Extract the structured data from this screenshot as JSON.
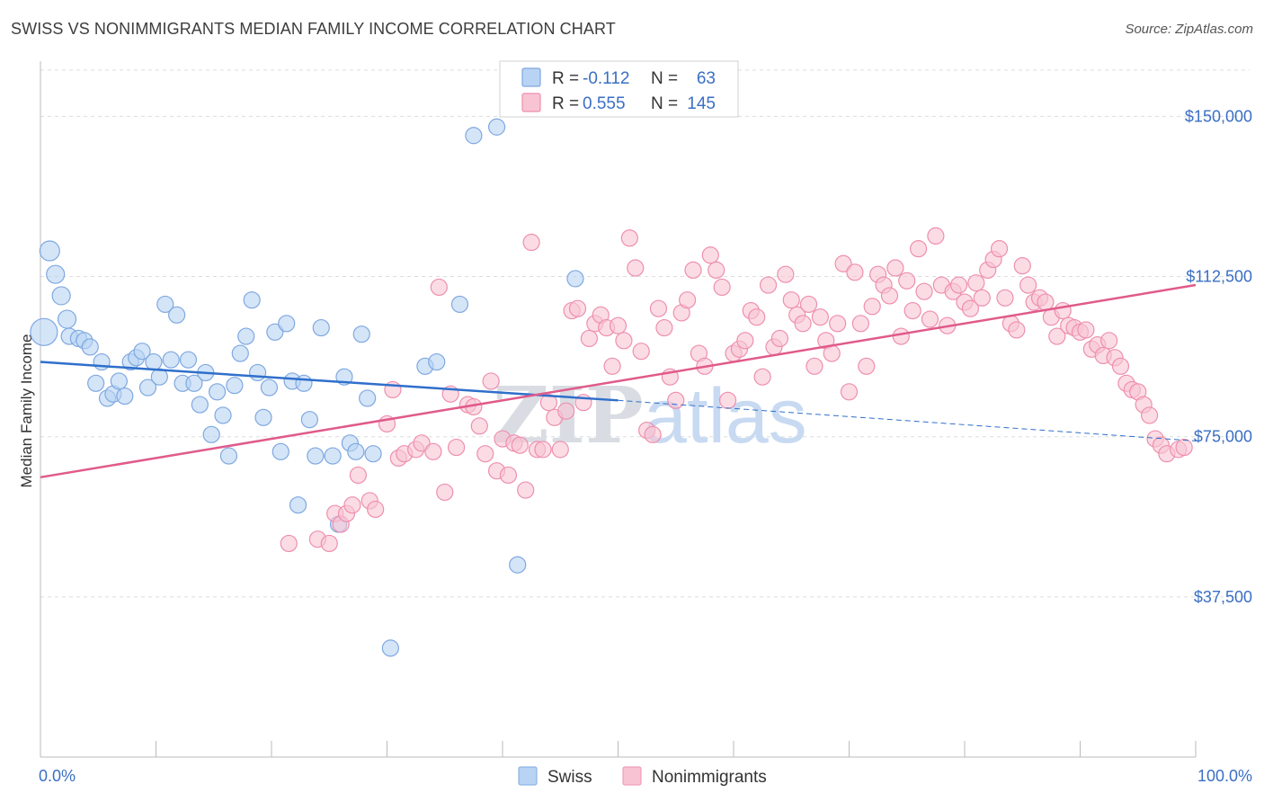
{
  "title": "SWISS VS NONIMMIGRANTS MEDIAN FAMILY INCOME CORRELATION CHART",
  "source": "Source: ZipAtlas.com",
  "watermark": {
    "zip": "ZIP",
    "atlas": "atlas"
  },
  "colors": {
    "swiss_fill": "#b8d3f4",
    "swiss_stroke": "#7fa8e0",
    "swiss_line": "#2f6fcb",
    "nonimm_fill": "#f8c4d4",
    "nonimm_stroke": "#ee8fae",
    "nonimm_line": "#e05a8a",
    "axis_label": "#3a6fc4",
    "grid": "#dddddd"
  },
  "legend": {
    "rows": [
      {
        "r_label": "R =",
        "r_value": "-0.112",
        "n_label": "N =",
        "n_value": "63"
      },
      {
        "r_label": "R =",
        "r_value": "0.555",
        "n_label": "N =",
        "n_value": "145"
      }
    ]
  },
  "bottom_legend": {
    "swiss": "Swiss",
    "nonimmigrants": "Nonimmigrants"
  },
  "chart_data": {
    "type": "scatter",
    "xlabel": "",
    "ylabel": "Median Family Income",
    "xlim": [
      0,
      100
    ],
    "ylim": [
      0,
      162500
    ],
    "x_tick_labels": [
      "0.0%",
      "100.0%"
    ],
    "y_ticks": [
      37500,
      75000,
      112500,
      150000
    ],
    "y_tick_labels": [
      "$37,500",
      "$75,000",
      "$112,500",
      "$150,000"
    ],
    "grid": "horizontal dashed",
    "legend_position": "top-center",
    "series": [
      {
        "name": "Swiss",
        "r": -0.112,
        "n": 63,
        "trend": {
          "x": [
            0,
            50
          ],
          "y": [
            92500,
            83500
          ],
          "dashed_extension": {
            "x": [
              50,
              100
            ],
            "y": [
              83500,
              74000
            ]
          }
        },
        "points": [
          [
            0.3,
            99500,
            14
          ],
          [
            0.8,
            118500,
            10
          ],
          [
            1.3,
            113000,
            9
          ],
          [
            1.8,
            108000,
            9
          ],
          [
            2.3,
            102500,
            9
          ],
          [
            2.5,
            98500,
            8
          ],
          [
            3.3,
            98000,
            8
          ],
          [
            3.8,
            97500,
            8
          ],
          [
            4.3,
            96000,
            8
          ],
          [
            4.8,
            87500,
            8
          ],
          [
            5.3,
            92500,
            8
          ],
          [
            5.8,
            84000,
            8
          ],
          [
            6.3,
            85000,
            8
          ],
          [
            6.8,
            88000,
            8
          ],
          [
            7.3,
            84500,
            8
          ],
          [
            7.8,
            92500,
            8
          ],
          [
            8.3,
            93500,
            8
          ],
          [
            8.8,
            95000,
            8
          ],
          [
            9.3,
            86500,
            8
          ],
          [
            9.8,
            92500,
            8
          ],
          [
            10.3,
            89000,
            8
          ],
          [
            10.8,
            106000,
            8
          ],
          [
            11.3,
            93000,
            8
          ],
          [
            11.8,
            103500,
            8
          ],
          [
            12.3,
            87500,
            8
          ],
          [
            12.8,
            93000,
            8
          ],
          [
            13.3,
            87500,
            8
          ],
          [
            13.8,
            82500,
            8
          ],
          [
            14.3,
            90000,
            8
          ],
          [
            14.8,
            75500,
            8
          ],
          [
            15.3,
            85500,
            8
          ],
          [
            15.8,
            80000,
            8
          ],
          [
            16.3,
            70500,
            8
          ],
          [
            16.8,
            87000,
            8
          ],
          [
            17.3,
            94500,
            8
          ],
          [
            17.8,
            98500,
            8
          ],
          [
            18.3,
            107000,
            8
          ],
          [
            18.8,
            90000,
            8
          ],
          [
            19.3,
            79500,
            8
          ],
          [
            19.8,
            86500,
            8
          ],
          [
            20.3,
            99500,
            8
          ],
          [
            20.8,
            71500,
            8
          ],
          [
            21.3,
            101500,
            8
          ],
          [
            21.8,
            88000,
            8
          ],
          [
            22.3,
            59000,
            8
          ],
          [
            22.8,
            87500,
            8
          ],
          [
            23.3,
            79000,
            8
          ],
          [
            23.8,
            70500,
            8
          ],
          [
            24.3,
            100500,
            8
          ],
          [
            25.3,
            70500,
            8
          ],
          [
            25.8,
            54500,
            8
          ],
          [
            26.3,
            89000,
            8
          ],
          [
            26.8,
            73500,
            8
          ],
          [
            27.3,
            71500,
            8
          ],
          [
            27.8,
            99000,
            8
          ],
          [
            28.3,
            84000,
            8
          ],
          [
            28.8,
            71000,
            8
          ],
          [
            30.3,
            25500,
            8
          ],
          [
            33.3,
            91500,
            8
          ],
          [
            34.3,
            92500,
            8
          ],
          [
            36.3,
            106000,
            8
          ],
          [
            37.5,
            145500,
            8
          ],
          [
            39.5,
            147500,
            8
          ],
          [
            41.3,
            45000,
            8
          ],
          [
            46.3,
            112000,
            8
          ]
        ]
      },
      {
        "name": "Nonimmigrants",
        "r": 0.555,
        "n": 145,
        "trend": {
          "x": [
            0,
            100
          ],
          "y": [
            65500,
            110500
          ]
        },
        "points": [
          [
            21.5,
            50000,
            8
          ],
          [
            24.0,
            51000,
            8
          ],
          [
            25.0,
            50000,
            8
          ],
          [
            25.5,
            57000,
            8
          ],
          [
            26.0,
            54500,
            8
          ],
          [
            26.5,
            57000,
            8
          ],
          [
            27.0,
            59000,
            8
          ],
          [
            27.5,
            66000,
            8
          ],
          [
            28.5,
            60000,
            8
          ],
          [
            29.0,
            58000,
            8
          ],
          [
            30.0,
            78000,
            8
          ],
          [
            30.5,
            86000,
            8
          ],
          [
            31.0,
            70000,
            8
          ],
          [
            31.5,
            71000,
            8
          ],
          [
            32.5,
            72000,
            8
          ],
          [
            33.0,
            73500,
            8
          ],
          [
            34.0,
            71500,
            8
          ],
          [
            34.5,
            110000,
            8
          ],
          [
            35.0,
            62000,
            8
          ],
          [
            35.5,
            85000,
            8
          ],
          [
            36.0,
            72500,
            8
          ],
          [
            37.0,
            82500,
            8
          ],
          [
            37.5,
            82000,
            8
          ],
          [
            38.0,
            77500,
            8
          ],
          [
            38.5,
            71000,
            8
          ],
          [
            39.0,
            88000,
            8
          ],
          [
            39.5,
            67000,
            8
          ],
          [
            40.0,
            74500,
            8
          ],
          [
            40.5,
            66000,
            8
          ],
          [
            41.0,
            73500,
            8
          ],
          [
            41.5,
            73000,
            8
          ],
          [
            42.0,
            62500,
            8
          ],
          [
            42.5,
            120500,
            8
          ],
          [
            43.0,
            72000,
            8
          ],
          [
            43.5,
            72000,
            8
          ],
          [
            44.0,
            83000,
            8
          ],
          [
            44.5,
            79500,
            8
          ],
          [
            45.0,
            72000,
            8
          ],
          [
            45.5,
            81000,
            8
          ],
          [
            46.0,
            104500,
            8
          ],
          [
            46.5,
            105000,
            8
          ],
          [
            47.0,
            83000,
            8
          ],
          [
            47.5,
            98000,
            8
          ],
          [
            48.0,
            101500,
            8
          ],
          [
            48.5,
            103500,
            8
          ],
          [
            49.0,
            100500,
            8
          ],
          [
            49.5,
            91500,
            8
          ],
          [
            50.0,
            101000,
            8
          ],
          [
            50.5,
            97500,
            8
          ],
          [
            51.0,
            121500,
            8
          ],
          [
            51.5,
            114500,
            8
          ],
          [
            52.0,
            95000,
            8
          ],
          [
            52.5,
            76500,
            8
          ],
          [
            53.0,
            75500,
            8
          ],
          [
            53.5,
            105000,
            8
          ],
          [
            54.0,
            100500,
            8
          ],
          [
            54.5,
            89000,
            8
          ],
          [
            55.0,
            83500,
            8
          ],
          [
            55.5,
            104000,
            8
          ],
          [
            56.0,
            107000,
            8
          ],
          [
            56.5,
            114000,
            8
          ],
          [
            57.0,
            94500,
            8
          ],
          [
            57.5,
            91500,
            8
          ],
          [
            58.0,
            117500,
            8
          ],
          [
            58.5,
            114000,
            8
          ],
          [
            59.0,
            110000,
            8
          ],
          [
            59.5,
            83500,
            8
          ],
          [
            60.0,
            94500,
            8
          ],
          [
            60.5,
            95500,
            8
          ],
          [
            61.0,
            97500,
            8
          ],
          [
            61.5,
            104500,
            8
          ],
          [
            62.0,
            103000,
            8
          ],
          [
            62.5,
            89000,
            8
          ],
          [
            63.0,
            110500,
            8
          ],
          [
            63.5,
            96000,
            8
          ],
          [
            64.0,
            98000,
            8
          ],
          [
            64.5,
            113000,
            8
          ],
          [
            65.0,
            107000,
            8
          ],
          [
            65.5,
            103500,
            8
          ],
          [
            66.0,
            101500,
            8
          ],
          [
            66.5,
            106000,
            8
          ],
          [
            67.0,
            91500,
            8
          ],
          [
            67.5,
            103000,
            8
          ],
          [
            68.0,
            97500,
            8
          ],
          [
            68.5,
            94500,
            8
          ],
          [
            69.0,
            101500,
            8
          ],
          [
            69.5,
            115500,
            8
          ],
          [
            70.0,
            85500,
            8
          ],
          [
            70.5,
            113500,
            8
          ],
          [
            71.0,
            101500,
            8
          ],
          [
            71.5,
            91500,
            8
          ],
          [
            72.0,
            105500,
            8
          ],
          [
            72.5,
            113000,
            8
          ],
          [
            73.0,
            110500,
            8
          ],
          [
            73.5,
            108000,
            8
          ],
          [
            74.0,
            114500,
            8
          ],
          [
            74.5,
            98500,
            8
          ],
          [
            75.0,
            111500,
            8
          ],
          [
            75.5,
            104500,
            8
          ],
          [
            76.0,
            119000,
            8
          ],
          [
            76.5,
            109000,
            8
          ],
          [
            77.0,
            102500,
            8
          ],
          [
            77.5,
            122000,
            8
          ],
          [
            78.0,
            110500,
            8
          ],
          [
            78.5,
            101000,
            8
          ],
          [
            79.0,
            109000,
            8
          ],
          [
            79.5,
            110500,
            8
          ],
          [
            80.0,
            106500,
            8
          ],
          [
            80.5,
            105000,
            8
          ],
          [
            81.0,
            111000,
            8
          ],
          [
            81.5,
            107500,
            8
          ],
          [
            82.0,
            114000,
            8
          ],
          [
            82.5,
            116500,
            8
          ],
          [
            83.0,
            119000,
            8
          ],
          [
            83.5,
            107500,
            8
          ],
          [
            84.0,
            101500,
            8
          ],
          [
            84.5,
            100000,
            8
          ],
          [
            85.0,
            115000,
            8
          ],
          [
            85.5,
            110500,
            8
          ],
          [
            86.0,
            106500,
            8
          ],
          [
            86.5,
            107500,
            8
          ],
          [
            87.0,
            106500,
            8
          ],
          [
            87.5,
            103000,
            8
          ],
          [
            88.0,
            98500,
            8
          ],
          [
            88.5,
            104500,
            8
          ],
          [
            89.0,
            101000,
            8
          ],
          [
            89.5,
            100500,
            8
          ],
          [
            90.0,
            99500,
            8
          ],
          [
            90.5,
            100000,
            8
          ],
          [
            91.0,
            95500,
            8
          ],
          [
            91.5,
            96500,
            8
          ],
          [
            92.0,
            94000,
            8
          ],
          [
            92.5,
            97500,
            8
          ],
          [
            93.0,
            93500,
            8
          ],
          [
            93.5,
            91500,
            8
          ],
          [
            94.0,
            87500,
            8
          ],
          [
            94.5,
            86000,
            8
          ],
          [
            95.0,
            85500,
            8
          ],
          [
            95.5,
            82500,
            8
          ],
          [
            96.0,
            80000,
            8
          ],
          [
            96.5,
            74500,
            8
          ],
          [
            97.0,
            73000,
            8
          ],
          [
            97.5,
            71000,
            8
          ],
          [
            98.5,
            72000,
            8
          ],
          [
            99.0,
            72500,
            8
          ]
        ]
      }
    ]
  }
}
